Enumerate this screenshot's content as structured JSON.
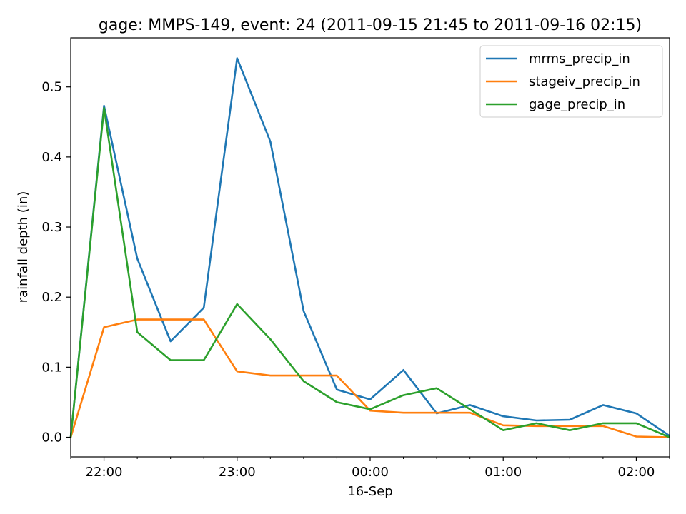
{
  "chart_data": {
    "type": "line",
    "title": "gage: MMPS-149, event: 24 (2011-09-15 21:45 to 2011-09-16 02:15)",
    "xlabel": "16-Sep",
    "ylabel": "rainfall depth (in)",
    "x": [
      "2011-09-15 21:45",
      "2011-09-15 22:00",
      "2011-09-15 22:15",
      "2011-09-15 22:30",
      "2011-09-15 22:45",
      "2011-09-15 23:00",
      "2011-09-15 23:15",
      "2011-09-15 23:30",
      "2011-09-15 23:45",
      "2011-09-16 00:00",
      "2011-09-16 00:15",
      "2011-09-16 00:30",
      "2011-09-16 00:45",
      "2011-09-16 01:00",
      "2011-09-16 01:15",
      "2011-09-16 01:30",
      "2011-09-16 01:45",
      "2011-09-16 02:00",
      "2011-09-16 02:15"
    ],
    "xlim": [
      "2011-09-15 21:45",
      "2011-09-16 02:15"
    ],
    "ylim": [
      -0.028,
      0.57
    ],
    "yticks": [
      0.0,
      0.1,
      0.2,
      0.3,
      0.4,
      0.5
    ],
    "ytick_labels": [
      "0.0",
      "0.1",
      "0.2",
      "0.3",
      "0.4",
      "0.5"
    ],
    "xticks": [
      "2011-09-15 22:00",
      "2011-09-15 23:00",
      "2011-09-16 00:00",
      "2011-09-16 01:00",
      "2011-09-16 02:00"
    ],
    "xtick_labels": [
      "22:00",
      "23:00",
      "00:00",
      "01:00",
      "02:00"
    ],
    "grid": false,
    "legend_position": "top-right",
    "series": [
      {
        "name": "mrms_precip_in",
        "color": "#1f77b4",
        "values": [
          0.0,
          0.473,
          0.255,
          0.137,
          0.185,
          0.541,
          0.422,
          0.18,
          0.068,
          0.054,
          0.096,
          0.034,
          0.046,
          0.03,
          0.024,
          0.025,
          0.046,
          0.034,
          0.002
        ]
      },
      {
        "name": "stageiv_precip_in",
        "color": "#ff7f0e",
        "values": [
          0.0,
          0.157,
          0.168,
          0.168,
          0.168,
          0.094,
          0.088,
          0.088,
          0.088,
          0.038,
          0.035,
          0.035,
          0.035,
          0.017,
          0.016,
          0.016,
          0.016,
          0.001,
          0.0
        ]
      },
      {
        "name": "gage_precip_in",
        "color": "#2ca02c",
        "values": [
          0.0,
          0.47,
          0.15,
          0.11,
          0.11,
          0.19,
          0.14,
          0.08,
          0.05,
          0.04,
          0.06,
          0.07,
          0.04,
          0.01,
          0.02,
          0.01,
          0.02,
          0.02,
          0.0
        ]
      }
    ]
  }
}
